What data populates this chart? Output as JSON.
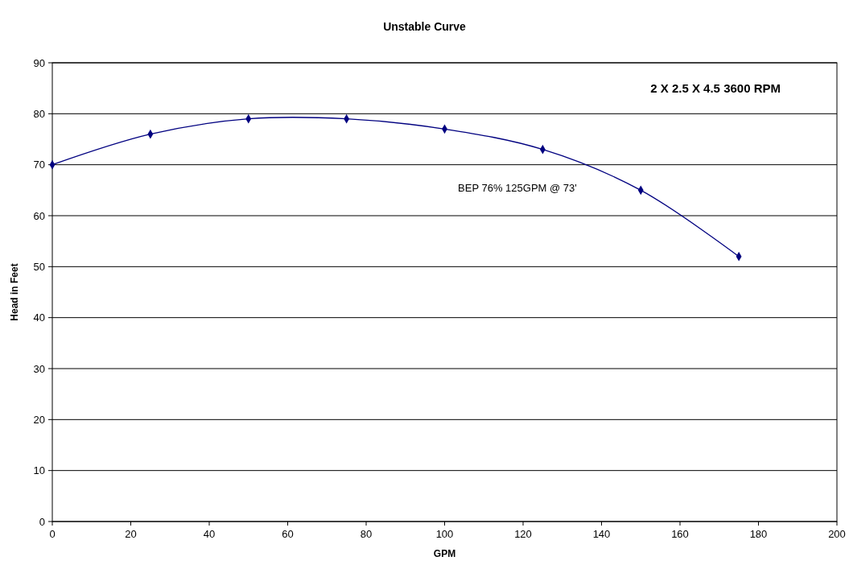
{
  "chart_data": {
    "type": "line",
    "title": "Unstable Curve",
    "xlabel": "GPM",
    "ylabel": "Head in Feet",
    "x": [
      0,
      25,
      50,
      75,
      100,
      125,
      150,
      175
    ],
    "series": [
      {
        "color": "#000080",
        "values": [
          70,
          76,
          79,
          79,
          77,
          73,
          65,
          52
        ]
      }
    ],
    "xlim": [
      0,
      200
    ],
    "xticks": [
      0,
      20,
      40,
      60,
      80,
      100,
      120,
      140,
      160,
      180,
      200
    ],
    "ylim": [
      0,
      90
    ],
    "yticks": [
      0,
      10,
      20,
      30,
      40,
      50,
      60,
      70,
      80,
      90
    ],
    "grid": "y",
    "marker": "diamond",
    "line_style": "solid",
    "annotations": [
      "2 X 2.5 X 4.5  3600 RPM",
      "BEP 76% 125GPM @ 73'"
    ]
  }
}
